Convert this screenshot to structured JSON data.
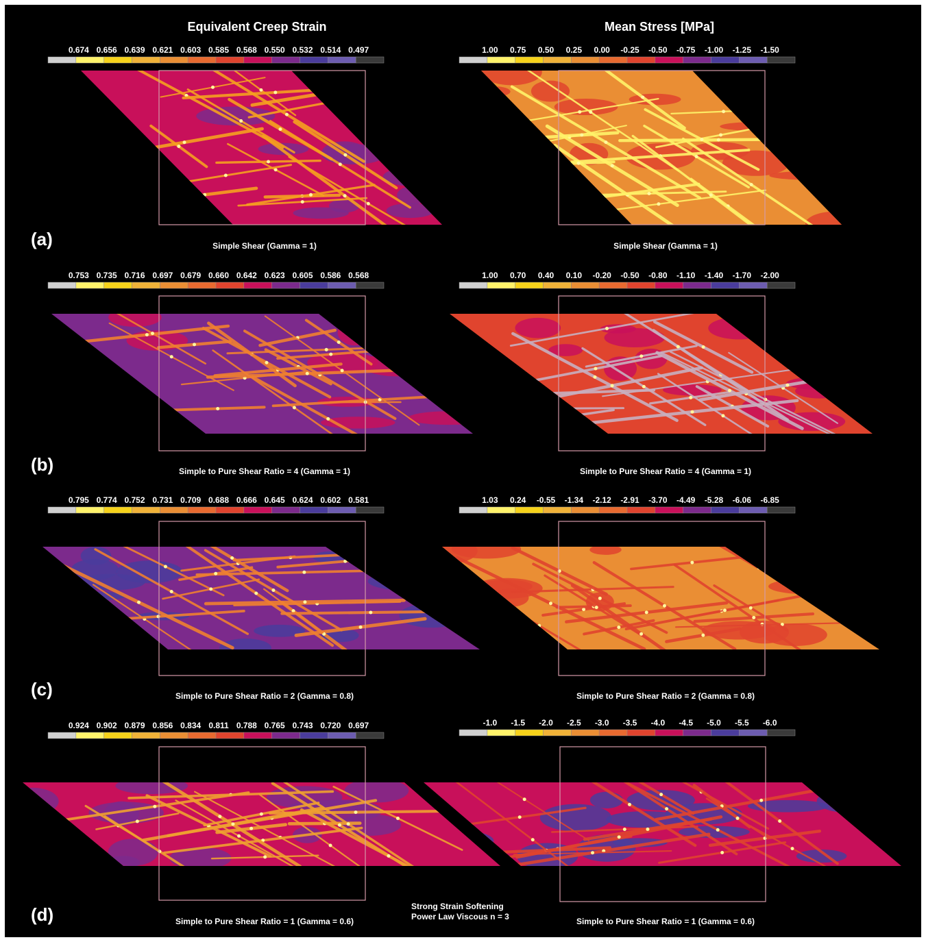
{
  "columns": [
    {
      "title": "Equivalent Creep Strain"
    },
    {
      "title": "Mean Stress [MPa]"
    }
  ],
  "rows": [
    {
      "label": "(a)",
      "panels": [
        {
          "scale": [
            "0.674",
            "0.656",
            "0.639",
            "0.621",
            "0.603",
            "0.585",
            "0.568",
            "0.550",
            "0.532",
            "0.514",
            "0.497"
          ],
          "caption": "Simple Shear (Gamma = 1)"
        },
        {
          "scale": [
            "1.00",
            "0.75",
            "0.50",
            "0.25",
            "0.00",
            "-0.25",
            "-0.50",
            "-0.75",
            "-1.00",
            "-1.25",
            "-1.50"
          ],
          "caption": "Simple Shear (Gamma = 1)"
        }
      ]
    },
    {
      "label": "(b)",
      "panels": [
        {
          "scale": [
            "0.753",
            "0.735",
            "0.716",
            "0.697",
            "0.679",
            "0.660",
            "0.642",
            "0.623",
            "0.605",
            "0.586",
            "0.568"
          ],
          "caption": "Simple to Pure Shear Ratio = 4 (Gamma = 1)"
        },
        {
          "scale": [
            "1.00",
            "0.70",
            "0.40",
            "0.10",
            "-0.20",
            "-0.50",
            "-0.80",
            "-1.10",
            "-1.40",
            "-1.70",
            "-2.00"
          ],
          "caption": "Simple to Pure Shear Ratio = 4 (Gamma = 1)"
        }
      ]
    },
    {
      "label": "(c)",
      "panels": [
        {
          "scale": [
            "0.795",
            "0.774",
            "0.752",
            "0.731",
            "0.709",
            "0.688",
            "0.666",
            "0.645",
            "0.624",
            "0.602",
            "0.581"
          ],
          "caption": "Simple to Pure Shear Ratio = 2 (Gamma = 0.8)"
        },
        {
          "scale": [
            "1.03",
            "0.24",
            "-0.55",
            "-1.34",
            "-2.12",
            "-2.91",
            "-3.70",
            "-4.49",
            "-5.28",
            "-6.06",
            "-6.85"
          ],
          "caption": "Simple to Pure Shear Ratio = 2 (Gamma = 0.8)"
        }
      ]
    },
    {
      "label": "(d)",
      "panels": [
        {
          "scale": [
            "0.924",
            "0.902",
            "0.879",
            "0.856",
            "0.834",
            "0.811",
            "0.788",
            "0.765",
            "0.743",
            "0.720",
            "0.697"
          ],
          "caption": "Simple to Pure Shear Ratio = 1 (Gamma = 0.6)"
        },
        {
          "scale": [
            "-1.0",
            "-1.5",
            "-2.0",
            "-2.5",
            "-3.0",
            "-3.5",
            "-4.0",
            "-4.5",
            "-5.0",
            "-5.5",
            "-6.0"
          ],
          "caption": "Simple to Pure Shear Ratio = 1 (Gamma = 0.6)"
        }
      ]
    }
  ],
  "annotation": [
    "Strong Strain Softening",
    "Power Law Viscous n = 3"
  ]
}
